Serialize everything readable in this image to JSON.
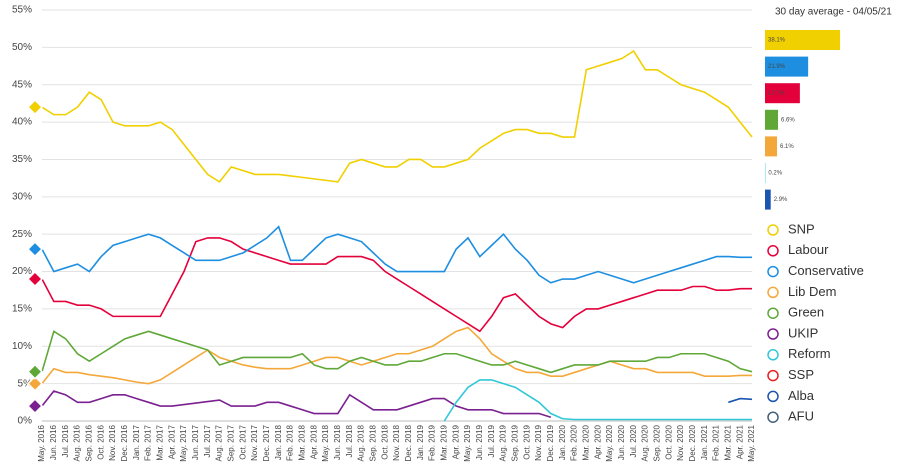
{
  "chart_data": {
    "type": "line",
    "bar_title": "30 day average - 04/05/21",
    "categories": [
      "May. 2016",
      "Jun. 2016",
      "Jul. 2016",
      "Aug. 2016",
      "Sep. 2016",
      "Oct. 2016",
      "Nov. 2016",
      "Dec. 2016",
      "Jan. 2017",
      "Feb. 2017",
      "Mar. 2017",
      "Apr. 2017",
      "May. 2017",
      "Jun. 2017",
      "Jul. 2017",
      "Aug. 2017",
      "Sep. 2017",
      "Oct. 2017",
      "Nov. 2017",
      "Dec. 2017",
      "Jan. 2018",
      "Feb. 2018",
      "Mar. 2018",
      "Apr. 2018",
      "May. 2018",
      "Jun. 2018",
      "Jul. 2018",
      "Aug. 2018",
      "Sep. 2018",
      "Oct. 2018",
      "Nov. 2018",
      "Dec. 2018",
      "Jan. 2019",
      "Feb. 2019",
      "Mar. 2019",
      "Apr. 2019",
      "May. 2019",
      "Jun. 2019",
      "Jul. 2019",
      "Aug. 2019",
      "Sep. 2019",
      "Oct. 2019",
      "Nov. 2019",
      "Dec. 2019",
      "Jan. 2020",
      "Feb. 2020",
      "Mar. 2020",
      "Apr. 2020",
      "May. 2020",
      "Jun. 2020",
      "Jul. 2020",
      "Aug. 2020",
      "Sep. 2020",
      "Oct. 2020",
      "Nov. 2020",
      "Dec. 2020",
      "Jan. 2021",
      "Feb. 2021",
      "Mar. 2021",
      "Apr. 2021",
      "May. 2021"
    ],
    "ylim": [
      0,
      55
    ],
    "yticks": [
      {
        "value": 0,
        "label": "0%"
      },
      {
        "value": 5,
        "label": "5%"
      },
      {
        "value": 10,
        "label": "10%"
      },
      {
        "value": 15,
        "label": "15%"
      },
      {
        "value": 20,
        "label": "20%"
      },
      {
        "value": 25,
        "label": "25%"
      },
      {
        "value": 30,
        "label": "30%"
      },
      {
        "value": 35,
        "label": "35%"
      },
      {
        "value": 40,
        "label": "40%"
      },
      {
        "value": 45,
        "label": "45%"
      },
      {
        "value": 50,
        "label": "50%"
      },
      {
        "value": 55,
        "label": "55%"
      }
    ],
    "grid": true,
    "series": [
      {
        "name": "SNP",
        "color": "#f0d000",
        "values": [
          42,
          41,
          41,
          42,
          44,
          43,
          40,
          39.5,
          39.5,
          39.5,
          40,
          39,
          37,
          35,
          33,
          32,
          34,
          33.5,
          33,
          33,
          33,
          32.8,
          32.6,
          32.4,
          32.2,
          32,
          34.5,
          35,
          34.5,
          34,
          34,
          35,
          35,
          34,
          34,
          34.5,
          35,
          36.5,
          37.5,
          38.5,
          39,
          39,
          38.5,
          38.5,
          38,
          38,
          47,
          47.5,
          48,
          48.5,
          49.5,
          47,
          47,
          46,
          45,
          44.5,
          44,
          43,
          42,
          40,
          38
        ]
      },
      {
        "name": "Labour",
        "color": "#e4003b",
        "values": [
          19,
          16,
          16,
          15.5,
          15.5,
          15,
          14,
          14,
          14,
          14,
          14,
          17,
          20,
          24,
          24.5,
          24.5,
          24,
          23,
          22.5,
          22,
          21.5,
          21,
          21,
          21,
          21,
          22,
          22,
          22,
          21.5,
          20,
          19,
          18,
          17,
          16,
          15,
          14,
          13,
          12,
          14,
          16.5,
          17,
          15.5,
          14,
          13,
          12.5,
          14,
          15,
          15,
          15.5,
          16,
          16.5,
          17,
          17.5,
          17.5,
          17.5,
          18,
          18,
          17.5,
          17.5,
          17.7,
          17.7
        ]
      },
      {
        "name": "Conservative",
        "color": "#1e8fe0",
        "values": [
          23,
          20,
          20.5,
          21,
          20,
          22,
          23.5,
          24,
          24.5,
          25,
          24.5,
          23.5,
          22.5,
          21.5,
          21.5,
          21.5,
          22,
          22.5,
          23.5,
          24.5,
          26,
          21.5,
          21.5,
          23,
          24.5,
          25,
          24.5,
          24,
          22.5,
          21,
          20,
          20,
          20,
          20,
          20,
          23,
          24.5,
          22,
          23.5,
          25,
          23,
          21.5,
          19.5,
          18.5,
          19,
          19,
          19.5,
          20,
          19.5,
          19,
          18.5,
          19,
          19.5,
          20,
          20.5,
          21,
          21.5,
          22,
          22,
          21.9,
          21.9
        ]
      },
      {
        "name": "Lib Dem",
        "color": "#f5a83a",
        "values": [
          5,
          7,
          6.5,
          6.5,
          6.2,
          6,
          5.8,
          5.5,
          5.2,
          5,
          5.5,
          6.5,
          7.5,
          8.5,
          9.5,
          8.5,
          8,
          7.5,
          7.2,
          7,
          7,
          7,
          7.5,
          8,
          8.5,
          8.5,
          8,
          7.5,
          8,
          8.5,
          9,
          9,
          9.5,
          10,
          11,
          12,
          12.5,
          11,
          9,
          8,
          7,
          6.5,
          6.5,
          6,
          6,
          6.5,
          7,
          7.5,
          8,
          7.5,
          7,
          7,
          6.5,
          6.5,
          6.5,
          6.5,
          6,
          6,
          6,
          6.1,
          6.1
        ]
      },
      {
        "name": "Green",
        "color": "#5fa838",
        "values": [
          6.6,
          12,
          11,
          9,
          8,
          9,
          10,
          11,
          11.5,
          12,
          11.5,
          11,
          10.5,
          10,
          9.5,
          7.5,
          8,
          8.5,
          8.5,
          8.5,
          8.5,
          8.5,
          9,
          7.5,
          7,
          7,
          8,
          8.5,
          8,
          7.5,
          7.5,
          8,
          8,
          8.5,
          9,
          9,
          8.5,
          8,
          7.5,
          7.5,
          8,
          7.5,
          7,
          6.5,
          7,
          7.5,
          7.5,
          7.5,
          8,
          8,
          8,
          8,
          8.5,
          8.5,
          9,
          9,
          9,
          8.5,
          8,
          7,
          6.6
        ]
      },
      {
        "name": "UKIP",
        "color": "#7b2090",
        "values": [
          2,
          4,
          3.5,
          2.5,
          2.5,
          3,
          3.5,
          3.5,
          3,
          2.5,
          2,
          2,
          2.2,
          2.4,
          2.6,
          2.8,
          2,
          2,
          2,
          2.5,
          2.5,
          2,
          1.5,
          1,
          1,
          1,
          3.5,
          2.5,
          1.5,
          1.5,
          1.5,
          2,
          2.5,
          3,
          3,
          2,
          1.5,
          1.5,
          1.5,
          1,
          1,
          1,
          1,
          0.5,
          null,
          null,
          null,
          null,
          null,
          null,
          null,
          null,
          null,
          null,
          null,
          null,
          null,
          null,
          null,
          null,
          null
        ]
      },
      {
        "name": "Reform",
        "color": "#30c8d8",
        "values": [
          null,
          null,
          null,
          null,
          null,
          null,
          null,
          null,
          null,
          null,
          null,
          null,
          null,
          null,
          null,
          null,
          null,
          null,
          null,
          null,
          null,
          null,
          null,
          null,
          null,
          null,
          null,
          null,
          null,
          null,
          null,
          null,
          null,
          null,
          0,
          2.5,
          4.5,
          5.5,
          5.5,
          5,
          4.5,
          3.5,
          2.5,
          1,
          0.3,
          0.2,
          0.2,
          0.2,
          0.2,
          0.2,
          0.2,
          0.2,
          0.2,
          0.2,
          0.2,
          0.2,
          0.2,
          0.2,
          0.2,
          0.2,
          0.2
        ]
      },
      {
        "name": "SSP",
        "color": "#e82020"
      },
      {
        "name": "Alba",
        "color": "#1a55b0",
        "values": [
          null,
          null,
          null,
          null,
          null,
          null,
          null,
          null,
          null,
          null,
          null,
          null,
          null,
          null,
          null,
          null,
          null,
          null,
          null,
          null,
          null,
          null,
          null,
          null,
          null,
          null,
          null,
          null,
          null,
          null,
          null,
          null,
          null,
          null,
          null,
          null,
          null,
          null,
          null,
          null,
          null,
          null,
          null,
          null,
          null,
          null,
          null,
          null,
          null,
          null,
          null,
          null,
          null,
          null,
          null,
          null,
          null,
          null,
          2.5,
          3,
          2.9
        ]
      },
      {
        "name": "AFU",
        "color": "#44607a"
      }
    ],
    "bars": {
      "values": [
        38.1,
        21.9,
        17.7,
        6.6,
        6.1,
        0.2,
        2.9
      ],
      "value_labels": [
        "38.1%",
        "21.9%",
        "17.7%",
        "6.6%",
        "6.1%",
        "0.2%",
        "2.9%"
      ],
      "colors": [
        "#f0d000",
        "#1e8fe0",
        "#e4003b",
        "#5fa838",
        "#f5a83a",
        "#30c8d8",
        "#1a55b0"
      ]
    }
  }
}
